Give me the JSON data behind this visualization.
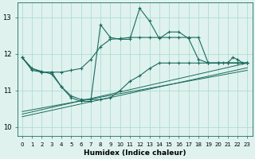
{
  "xlabel": "Humidex (Indice chaleur)",
  "background_color": "#dff2ee",
  "grid_color": "#a8d8d0",
  "line_color": "#1a6b5e",
  "xlim": [
    -0.5,
    23.5
  ],
  "ylim": [
    9.75,
    13.4
  ],
  "yticks": [
    10,
    11,
    12,
    13
  ],
  "xticks": [
    0,
    1,
    2,
    3,
    4,
    5,
    6,
    7,
    8,
    9,
    10,
    11,
    12,
    13,
    14,
    15,
    16,
    17,
    18,
    19,
    20,
    21,
    22,
    23
  ],
  "curve1_x": [
    0,
    1,
    2,
    3,
    4,
    5,
    6,
    7,
    8,
    9,
    10,
    11,
    12,
    13,
    14,
    15,
    16,
    17,
    18,
    19,
    20,
    21,
    22,
    23
  ],
  "curve1_y": [
    11.9,
    11.55,
    11.5,
    11.5,
    11.5,
    11.55,
    11.6,
    11.85,
    12.2,
    12.4,
    12.42,
    12.45,
    12.45,
    12.45,
    12.45,
    12.45,
    12.45,
    12.45,
    12.45,
    11.75,
    11.75,
    11.75,
    11.75,
    11.75
  ],
  "curve2_x": [
    0,
    1,
    2,
    3,
    4,
    5,
    6,
    7,
    8,
    9,
    10,
    11,
    12,
    13,
    14,
    15,
    16,
    17,
    18,
    19,
    20,
    21,
    22,
    23
  ],
  "curve2_y": [
    11.9,
    11.6,
    11.52,
    11.45,
    11.1,
    10.85,
    10.75,
    10.75,
    10.75,
    10.8,
    11.0,
    11.25,
    11.4,
    11.6,
    11.75,
    11.75,
    11.75,
    11.75,
    11.75,
    11.75,
    11.75,
    11.75,
    11.75,
    11.75
  ],
  "main_curve_x": [
    0,
    1,
    2,
    3,
    4,
    5,
    6,
    7,
    8,
    9,
    10,
    11,
    12,
    13,
    14,
    15,
    16,
    17,
    18,
    19,
    20,
    21,
    22,
    23
  ],
  "main_curve_y": [
    11.9,
    11.6,
    11.5,
    11.5,
    11.1,
    10.8,
    10.7,
    10.7,
    12.8,
    12.45,
    12.4,
    12.4,
    13.25,
    12.9,
    12.42,
    12.6,
    12.6,
    12.42,
    11.85,
    11.75,
    11.75,
    11.75,
    11.75,
    11.75
  ],
  "trend1_x": [
    0,
    23
  ],
  "trend1_y": [
    10.42,
    11.55
  ],
  "trend2_x": [
    0,
    23
  ],
  "trend2_y": [
    10.35,
    11.75
  ],
  "trend3_x": [
    0,
    23
  ],
  "trend3_y": [
    10.28,
    11.62
  ],
  "spike_x": [
    20.5,
    21.0,
    21.5,
    22.0,
    22.5,
    23.0
  ],
  "spike_y": [
    11.75,
    11.75,
    11.9,
    11.85,
    11.75,
    11.75
  ]
}
